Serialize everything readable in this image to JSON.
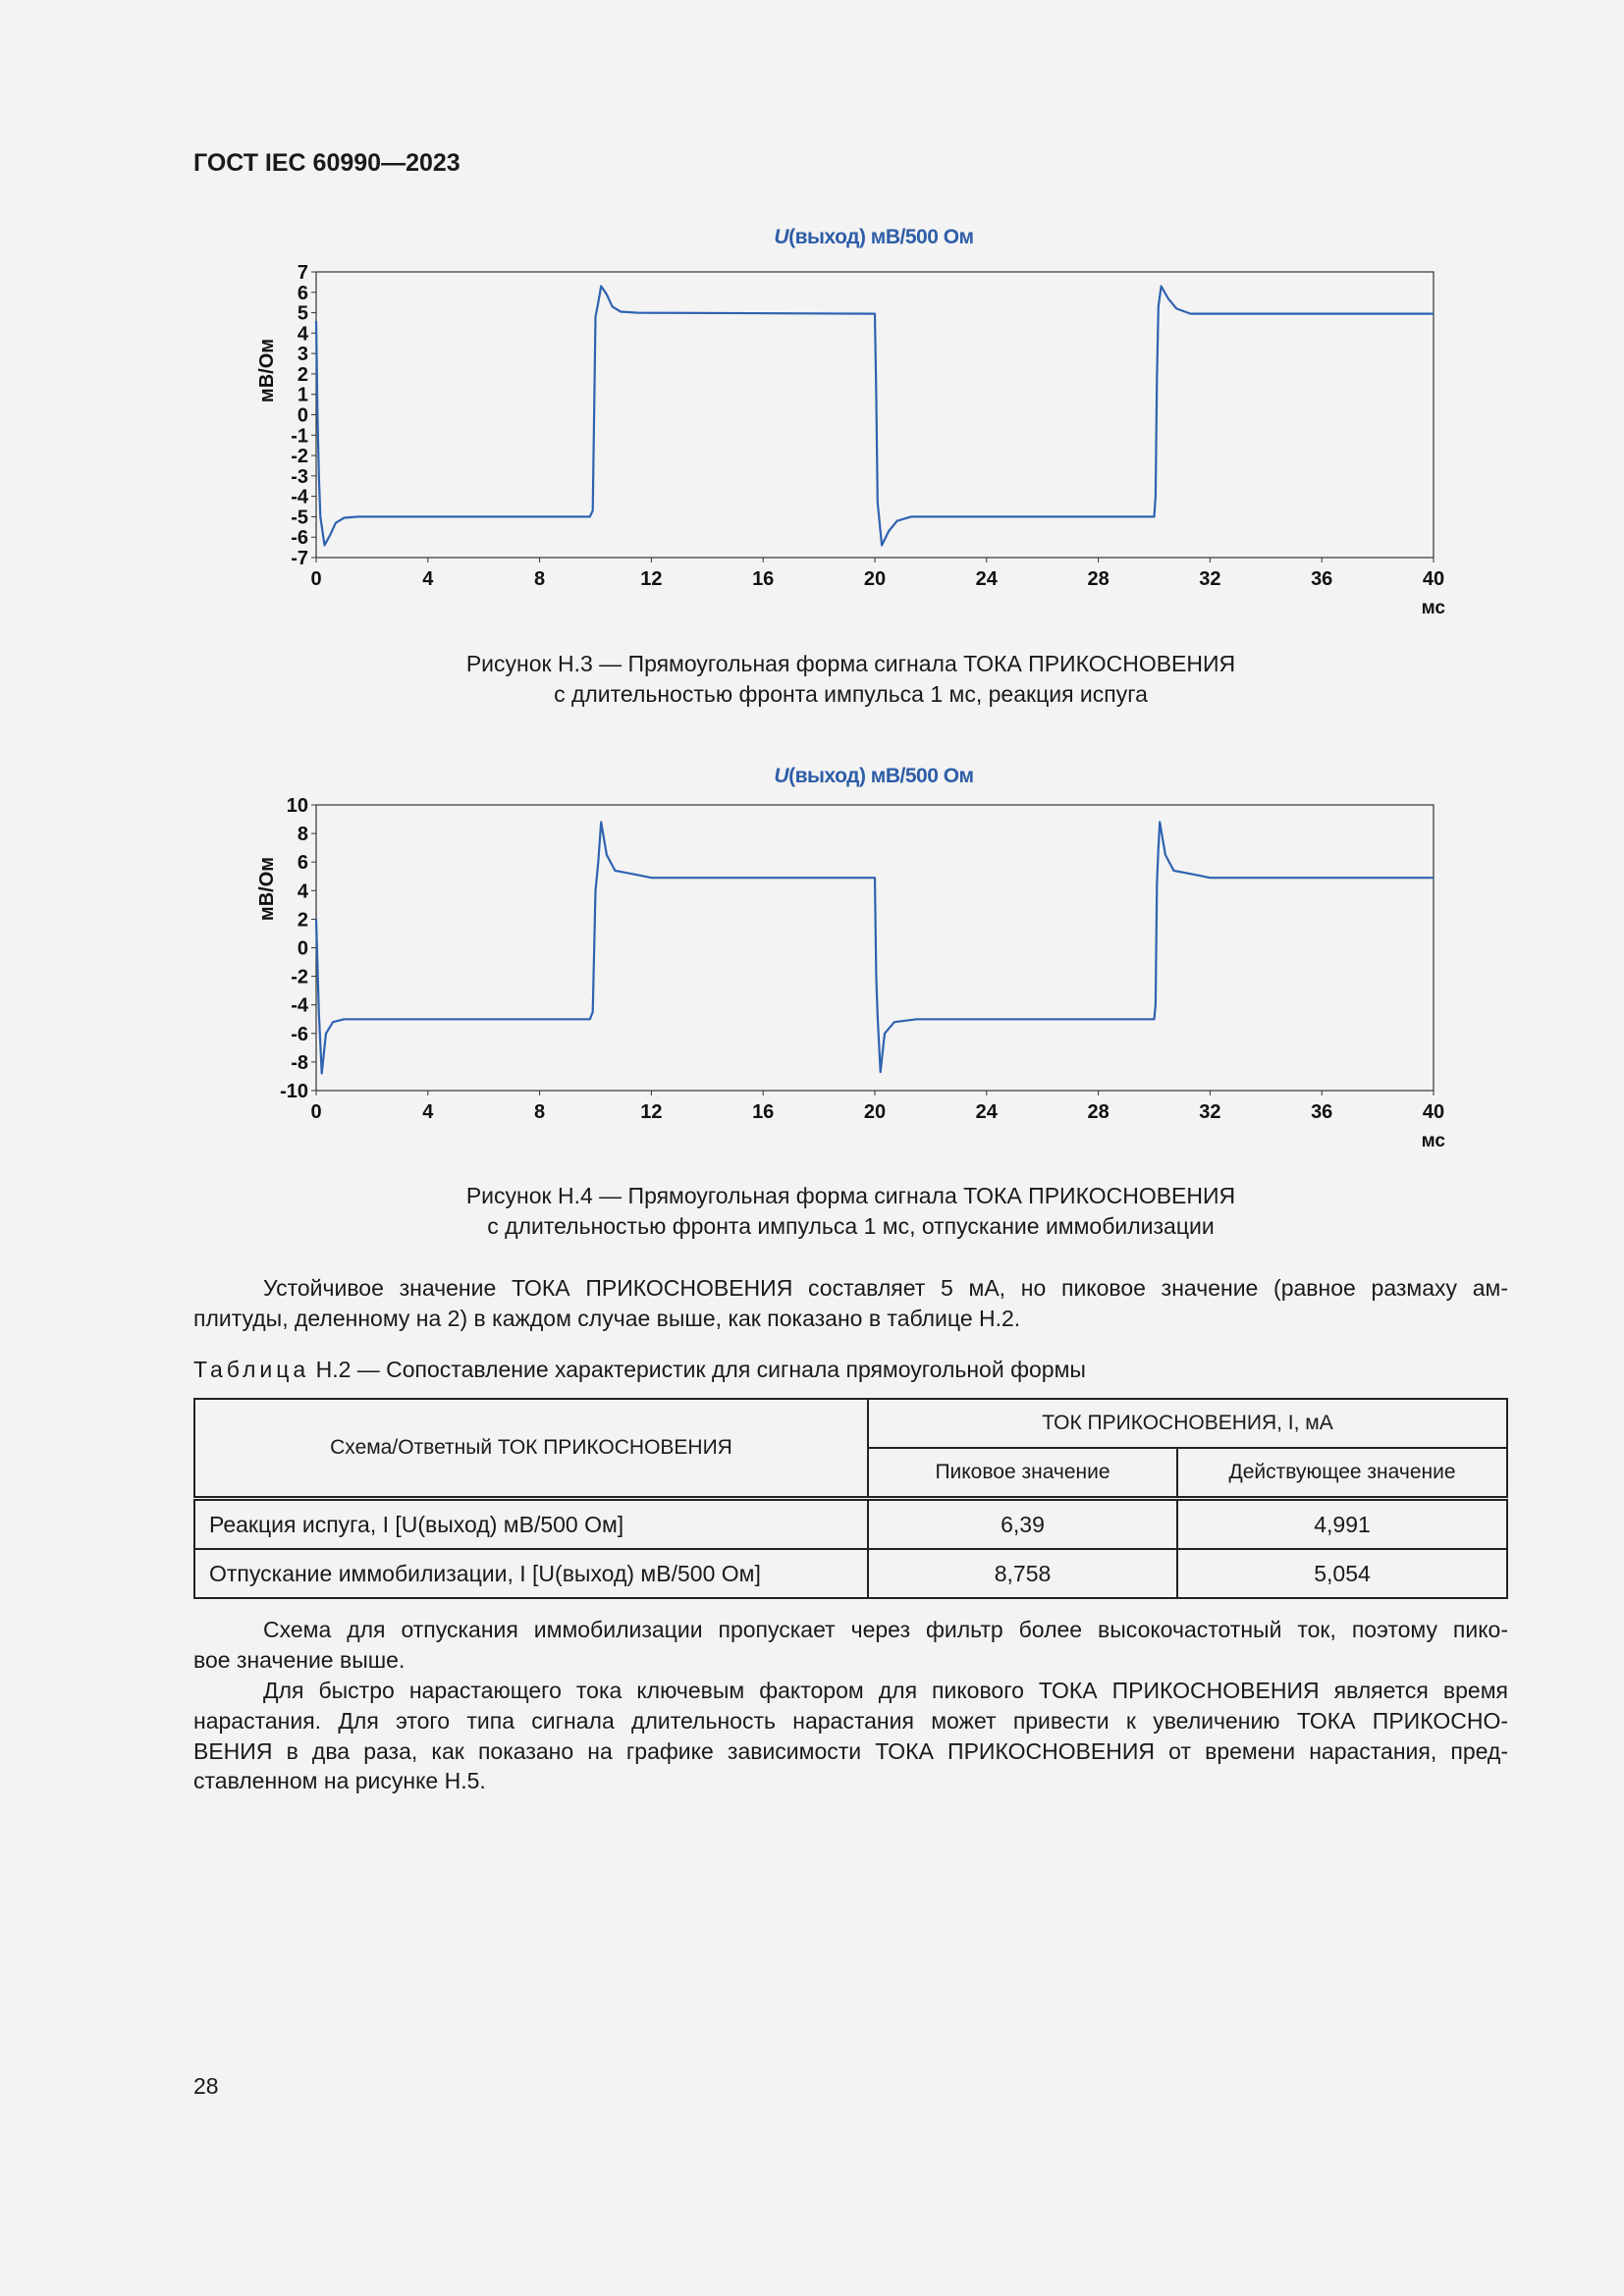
{
  "header": {
    "title": "ГОСТ IEC 60990—2023"
  },
  "chart_data": [
    {
      "type": "line",
      "title_italic": "U",
      "title": "(выход) мВ/500 Ом",
      "ylabel": "мВ/Ом",
      "xlabel": "мс",
      "xlim": [
        0,
        40
      ],
      "ylim": [
        -7,
        7
      ],
      "xticks": [
        0,
        4,
        8,
        12,
        16,
        20,
        24,
        28,
        32,
        36,
        40
      ],
      "yticks": [
        7,
        6,
        5,
        4,
        3,
        2,
        1,
        0,
        -1,
        -2,
        -3,
        -4,
        -5,
        -6,
        -7
      ],
      "color": "#2f62b0",
      "series": [
        {
          "name": "U(выход)",
          "x": [
            0,
            0.05,
            0.1,
            0.15,
            0.3,
            0.5,
            0.7,
            1,
            1.5,
            9.8,
            9.9,
            9.95,
            10,
            10.1,
            10.2,
            10.4,
            10.6,
            10.9,
            11.5,
            20,
            20.05,
            20.1,
            20.25,
            20.5,
            20.8,
            21.3,
            30,
            30.05,
            30.1,
            30.15,
            30.25,
            30.5,
            30.8,
            31.3,
            40
          ],
          "y": [
            4.6,
            0,
            -3,
            -5,
            -6.4,
            -5.9,
            -5.3,
            -5.05,
            -5,
            -5,
            -4.7,
            0,
            4.8,
            5.5,
            6.3,
            5.9,
            5.3,
            5.05,
            5,
            4.95,
            1,
            -4.3,
            -6.4,
            -5.7,
            -5.2,
            -5,
            -5,
            -4,
            1.8,
            5.3,
            6.3,
            5.7,
            5.2,
            4.95,
            4.95
          ]
        }
      ]
    },
    {
      "type": "line",
      "title_italic": "U",
      "title": "(выход) мВ/500 Ом",
      "ylabel": "мВ/Ом",
      "xlabel": "мс",
      "xlim": [
        0,
        40
      ],
      "ylim": [
        -10,
        10
      ],
      "xticks": [
        0,
        4,
        8,
        12,
        16,
        20,
        24,
        28,
        32,
        36,
        40
      ],
      "yticks": [
        10,
        8,
        6,
        4,
        2,
        0,
        -2,
        -4,
        -6,
        -8,
        -10
      ],
      "color": "#2f62b0",
      "series": [
        {
          "name": "U(выход)",
          "x": [
            0,
            0.1,
            0.2,
            0.35,
            0.6,
            1,
            9.8,
            9.9,
            10,
            10.1,
            10.2,
            10.4,
            10.7,
            11.5,
            12,
            20,
            20.05,
            20.1,
            20.2,
            20.35,
            20.7,
            21.5,
            30,
            30.05,
            30.1,
            30.15,
            30.2,
            30.4,
            30.7,
            31.5,
            32,
            40
          ],
          "y": [
            2,
            -4.6,
            -8.8,
            -6,
            -5.2,
            -5,
            -5,
            -4.5,
            4,
            6,
            8.8,
            6.5,
            5.4,
            5.1,
            4.9,
            4.9,
            -2,
            -4.8,
            -8.7,
            -6,
            -5.2,
            -5,
            -5,
            -4,
            4.5,
            7,
            8.8,
            6.5,
            5.4,
            5.1,
            4.9,
            4.9
          ]
        }
      ]
    }
  ],
  "captions": {
    "fig3": [
      "Рисунок Н.3 — Прямоугольная форма сигнала ТОКА ПРИКОСНОВЕНИЯ",
      "с длительностью фронта импульса 1 мс, реакция испуга"
    ],
    "fig4": [
      "Рисунок Н.4 — Прямоугольная форма сигнала ТОКА ПРИКОСНОВЕНИЯ",
      "с длительностью фронта импульса 1 мс, отпускание иммобилизации"
    ]
  },
  "para1": [
    "Устойчивое значение ТОКА ПРИКОСНОВЕНИЯ составляет 5 мА, но пиковое значение (равное размаху ам-",
    "плитуды, деленному на 2) в каждом случае выше, как показано в таблице Н.2."
  ],
  "table": {
    "caption_word": "Таблица",
    "caption_rest": " Н.2 — Сопоставление характеристик для сигнала прямоугольной формы",
    "col0": "Схема/Ответный ТОК ПРИКОСНОВЕНИЯ",
    "group": "ТОК ПРИКОСНОВЕНИЯ, I, мА",
    "col1": "Пиковое значение",
    "col2": "Действующее значение",
    "rows": [
      {
        "label": "Реакция испуга, I [U(выход) мВ/500 Ом]",
        "peak": "6,39",
        "rms": "4,991"
      },
      {
        "label": "Отпускание иммобилизации, I [U(выход) мВ/500 Ом]",
        "peak": "8,758",
        "rms": "5,054"
      }
    ]
  },
  "para2": [
    "Схема для отпускания иммобилизации пропускает через фильтр более высокочастотный ток, поэтому пико-",
    "вое значение выше."
  ],
  "para3": [
    "Для быстро нарастающего тока ключевым фактором для пикового ТОКА ПРИКОСНОВЕНИЯ является время",
    "нарастания. Для этого типа сигнала длительность нарастания может привести к увеличению ТОКА ПРИКОСНО-",
    "ВЕНИЯ в два раза, как показано на графике зависимости ТОКА ПРИКОСНОВЕНИЯ от времени нарастания, пред-",
    "ставленном на рисунке Н.5."
  ],
  "page_number": "28"
}
